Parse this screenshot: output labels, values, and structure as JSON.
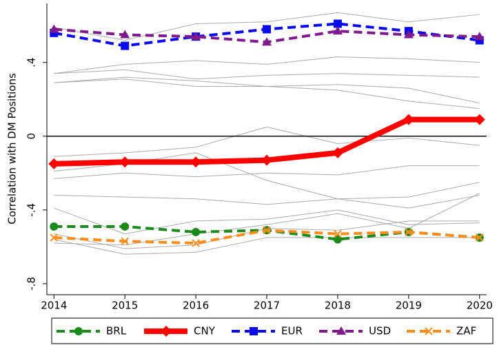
{
  "chart_data": {
    "type": "line",
    "y_label": "Correlation with DM Positions",
    "x": [
      2014,
      2015,
      2016,
      2017,
      2018,
      2019,
      2020
    ],
    "xlim": [
      2013.9,
      2020.1
    ],
    "xticks": [
      2014,
      2015,
      2016,
      2017,
      2018,
      2019,
      2020
    ],
    "ylim": [
      -0.86,
      0.72
    ],
    "yticks": [
      {
        "value": -0.8,
        "label": "-.8"
      },
      {
        "value": -0.4,
        "label": "-.4"
      },
      0,
      {
        "value": 0.4,
        "label": ".4"
      }
    ],
    "hline": 0,
    "legend": "bottom",
    "series": [
      {
        "color": "#aaaaaa",
        "values": [
          0.59,
          0.52,
          0.61,
          0.62,
          0.67,
          0.62,
          0.66
        ]
      },
      {
        "color": "#aaaaaa",
        "values": [
          0.34,
          0.39,
          0.41,
          0.39,
          0.43,
          0.42,
          0.4
        ]
      },
      {
        "color": "#aaaaaa",
        "values": [
          0.34,
          0.36,
          0.31,
          0.33,
          0.34,
          0.33,
          0.32
        ]
      },
      {
        "color": "#aaaaaa",
        "values": [
          0.29,
          0.32,
          0.3,
          0.27,
          0.28,
          0.26,
          0.18
        ]
      },
      {
        "color": "#aaaaaa",
        "values": [
          0.29,
          0.31,
          0.27,
          0.27,
          0.25,
          0.19,
          0.15
        ]
      },
      {
        "color": "#aaaaaa",
        "values": [
          -0.11,
          -0.09,
          -0.06,
          0.05,
          -0.04,
          -0.01,
          -0.05
        ]
      },
      {
        "color": "#aaaaaa",
        "values": [
          -0.23,
          -0.2,
          -0.22,
          -0.2,
          -0.21,
          -0.16,
          -0.16
        ]
      },
      {
        "color": "#aaaaaa",
        "values": [
          -0.19,
          -0.15,
          -0.09,
          -0.24,
          -0.34,
          -0.33,
          -0.25
        ]
      },
      {
        "color": "#aaaaaa",
        "values": [
          -0.32,
          -0.33,
          -0.34,
          -0.37,
          -0.34,
          -0.39,
          -0.32
        ]
      },
      {
        "color": "#aaaaaa",
        "values": [
          -0.39,
          -0.53,
          -0.46,
          -0.45,
          -0.4,
          -0.48,
          -0.47
        ]
      },
      {
        "color": "#aaaaaa",
        "values": [
          -0.53,
          -0.61,
          -0.59,
          -0.5,
          -0.51,
          -0.46,
          -0.46
        ]
      },
      {
        "color": "#aaaaaa",
        "values": [
          -0.56,
          -0.64,
          -0.63,
          -0.55,
          -0.55,
          -0.55,
          -0.55
        ]
      },
      {
        "color": "#aaaaaa",
        "values": [
          -0.58,
          -0.59,
          -0.53,
          -0.48,
          -0.42,
          -0.5,
          -0.31
        ]
      },
      {
        "name": "BRL",
        "color": "#1a8a1a",
        "marker": "circle",
        "dash": true,
        "line_width": 4,
        "values": [
          -0.49,
          -0.49,
          -0.52,
          -0.51,
          -0.56,
          -0.52,
          -0.55
        ]
      },
      {
        "name": "CNY",
        "color": "#ff0000",
        "marker": "diamond",
        "dash": false,
        "line_width": 8,
        "values": [
          -0.15,
          -0.14,
          -0.14,
          -0.13,
          -0.09,
          0.09,
          0.09
        ]
      },
      {
        "name": "EUR",
        "color": "#0a0aee",
        "marker": "square",
        "dash": true,
        "line_width": 4,
        "values": [
          0.56,
          0.49,
          0.54,
          0.58,
          0.61,
          0.57,
          0.52
        ]
      },
      {
        "name": "USD",
        "color": "#7f1a8c",
        "marker": "triangle",
        "dash": true,
        "line_width": 4,
        "values": [
          0.58,
          0.55,
          0.54,
          0.51,
          0.57,
          0.55,
          0.54
        ]
      },
      {
        "name": "ZAF",
        "color": "#ff8c1a",
        "marker": "x",
        "dash": true,
        "line_width": 4,
        "values": [
          -0.55,
          -0.57,
          -0.58,
          -0.51,
          -0.53,
          -0.52,
          -0.55
        ]
      }
    ]
  }
}
